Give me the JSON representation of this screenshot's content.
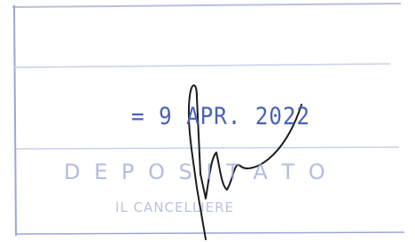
{
  "stamp": {
    "date": "= 9 APR. 2022",
    "status": "D E P O S I T A T O",
    "officer": "IL CANCELLIERE"
  }
}
